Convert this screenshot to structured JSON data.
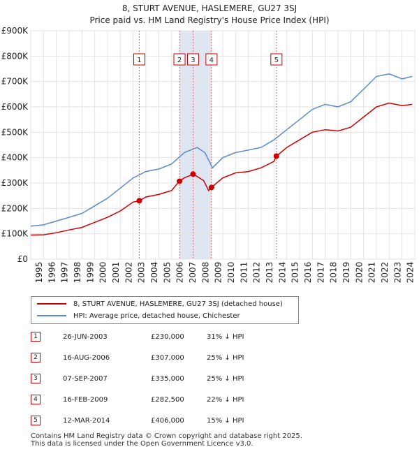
{
  "title": "8, STURT AVENUE, HASLEMERE, GU27 3SJ",
  "subtitle": "Price paid vs. HM Land Registry's House Price Index (HPI)",
  "colors": {
    "property": "#cc0000",
    "hpi": "#5b8ac6",
    "band": "#dfe6f3",
    "grid": "#e3e3e3",
    "marker_border": "#cc0000"
  },
  "chart_data": {
    "type": "line",
    "xlim": [
      1995,
      2025
    ],
    "ylim": [
      0,
      900000
    ],
    "y_ticks": [
      0,
      100000,
      200000,
      300000,
      400000,
      500000,
      600000,
      700000,
      800000,
      900000
    ],
    "y_tick_labels": [
      "£0",
      "£100K",
      "£200K",
      "£300K",
      "£400K",
      "£500K",
      "£600K",
      "£700K",
      "£800K",
      "£900K"
    ],
    "x_ticks": [
      1995,
      1996,
      1997,
      1998,
      1999,
      2000,
      2001,
      2002,
      2003,
      2004,
      2005,
      2006,
      2007,
      2008,
      2009,
      2010,
      2011,
      2012,
      2013,
      2014,
      2015,
      2016,
      2017,
      2018,
      2019,
      2020,
      2021,
      2022,
      2023,
      2024,
      2025
    ],
    "grid": true,
    "legend_position": "below",
    "series": [
      {
        "name": "8, STURT AVENUE, HASLEMERE, GU27 3SJ (detached house)",
        "color": "#cc0000",
        "points": [
          [
            1995.0,
            95000
          ],
          [
            1996.0,
            96000
          ],
          [
            1997.0,
            104000
          ],
          [
            1998.0,
            115000
          ],
          [
            1999.0,
            125000
          ],
          [
            2000.0,
            145000
          ],
          [
            2001.0,
            165000
          ],
          [
            2002.0,
            190000
          ],
          [
            2003.0,
            225000
          ],
          [
            2003.5,
            230000
          ],
          [
            2004.0,
            245000
          ],
          [
            2005.0,
            255000
          ],
          [
            2006.0,
            270000
          ],
          [
            2006.6,
            307000
          ],
          [
            2007.0,
            320000
          ],
          [
            2007.7,
            335000
          ],
          [
            2008.5,
            310000
          ],
          [
            2008.9,
            270000
          ],
          [
            2009.1,
            282500
          ],
          [
            2010.0,
            320000
          ],
          [
            2011.0,
            340000
          ],
          [
            2012.0,
            345000
          ],
          [
            2013.0,
            360000
          ],
          [
            2014.0,
            385000
          ],
          [
            2014.2,
            406000
          ],
          [
            2015.0,
            440000
          ],
          [
            2016.0,
            470000
          ],
          [
            2017.0,
            500000
          ],
          [
            2018.0,
            510000
          ],
          [
            2019.0,
            505000
          ],
          [
            2020.0,
            520000
          ],
          [
            2021.0,
            560000
          ],
          [
            2022.0,
            600000
          ],
          [
            2023.0,
            615000
          ],
          [
            2024.0,
            605000
          ],
          [
            2024.8,
            610000
          ]
        ]
      },
      {
        "name": "HPI: Average price, detached house, Chichester",
        "color": "#5b8ac6",
        "points": [
          [
            1995.0,
            130000
          ],
          [
            1996.0,
            135000
          ],
          [
            1997.0,
            150000
          ],
          [
            1998.0,
            165000
          ],
          [
            1999.0,
            180000
          ],
          [
            2000.0,
            210000
          ],
          [
            2001.0,
            240000
          ],
          [
            2002.0,
            280000
          ],
          [
            2003.0,
            320000
          ],
          [
            2004.0,
            345000
          ],
          [
            2005.0,
            355000
          ],
          [
            2006.0,
            375000
          ],
          [
            2007.0,
            420000
          ],
          [
            2008.0,
            440000
          ],
          [
            2008.6,
            420000
          ],
          [
            2009.2,
            360000
          ],
          [
            2010.0,
            400000
          ],
          [
            2011.0,
            420000
          ],
          [
            2012.0,
            430000
          ],
          [
            2013.0,
            440000
          ],
          [
            2014.0,
            470000
          ],
          [
            2015.0,
            510000
          ],
          [
            2016.0,
            550000
          ],
          [
            2017.0,
            590000
          ],
          [
            2018.0,
            610000
          ],
          [
            2019.0,
            600000
          ],
          [
            2020.0,
            620000
          ],
          [
            2021.0,
            670000
          ],
          [
            2022.0,
            720000
          ],
          [
            2023.0,
            730000
          ],
          [
            2024.0,
            710000
          ],
          [
            2024.8,
            720000
          ]
        ]
      }
    ],
    "sales": [
      {
        "id": "1",
        "date": "26-JUN-2003",
        "x": 2003.48,
        "price": 230000,
        "price_label": "£230,000",
        "hpi_diff": "31% ↓ HPI"
      },
      {
        "id": "2",
        "date": "16-AUG-2006",
        "x": 2006.62,
        "price": 307000,
        "price_label": "£307,000",
        "hpi_diff": "25% ↓ HPI"
      },
      {
        "id": "3",
        "date": "07-SEP-2007",
        "x": 2007.68,
        "price": 335000,
        "price_label": "£335,000",
        "hpi_diff": "25% ↓ HPI"
      },
      {
        "id": "4",
        "date": "16-FEB-2009",
        "x": 2009.12,
        "price": 282500,
        "price_label": "£282,500",
        "hpi_diff": "22% ↓ HPI"
      },
      {
        "id": "5",
        "date": "12-MAR-2014",
        "x": 2014.19,
        "price": 406000,
        "price_label": "£406,000",
        "hpi_diff": "15% ↓ HPI"
      }
    ]
  },
  "footer": {
    "line1": "Contains HM Land Registry data © Crown copyright and database right 2025.",
    "line2": "This data is licensed under the Open Government Licence v3.0."
  }
}
